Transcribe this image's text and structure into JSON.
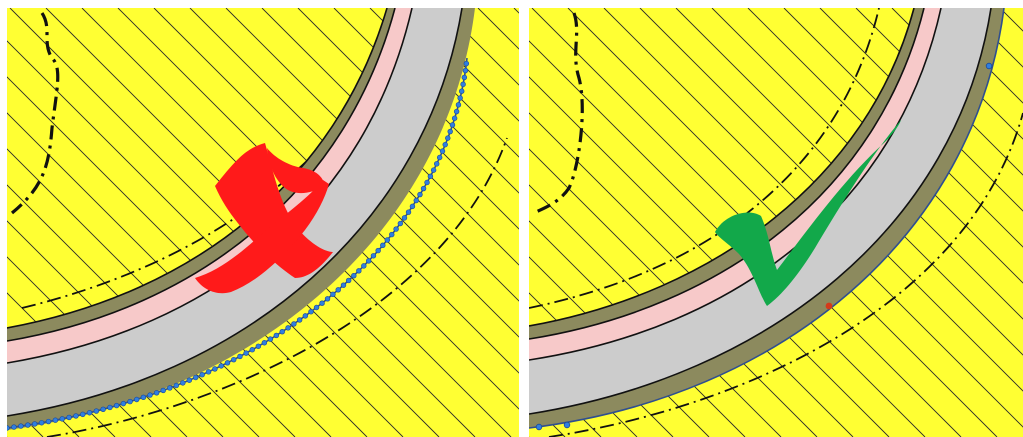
{
  "colors": {
    "background": "#ffff33",
    "hatch": "#2a2a2a",
    "boundary": "#111111",
    "band_olive": "#8c8a5e",
    "band_pink": "#f7c9c9",
    "band_gray": "#cccccc",
    "edge_line": "#2f4f8f",
    "vertex_dots": "#2f7fe0",
    "vertex_single": "#d43a1a",
    "cross_mark": "#ff1a1a",
    "check_mark": "#12a84a"
  },
  "panels": [
    {
      "id": "left",
      "status": "incorrect",
      "mark_icon": "cross-icon",
      "edge_vertices": "many"
    },
    {
      "id": "right",
      "status": "correct",
      "mark_icon": "checkmark-icon",
      "edge_vertices": "few"
    }
  ]
}
